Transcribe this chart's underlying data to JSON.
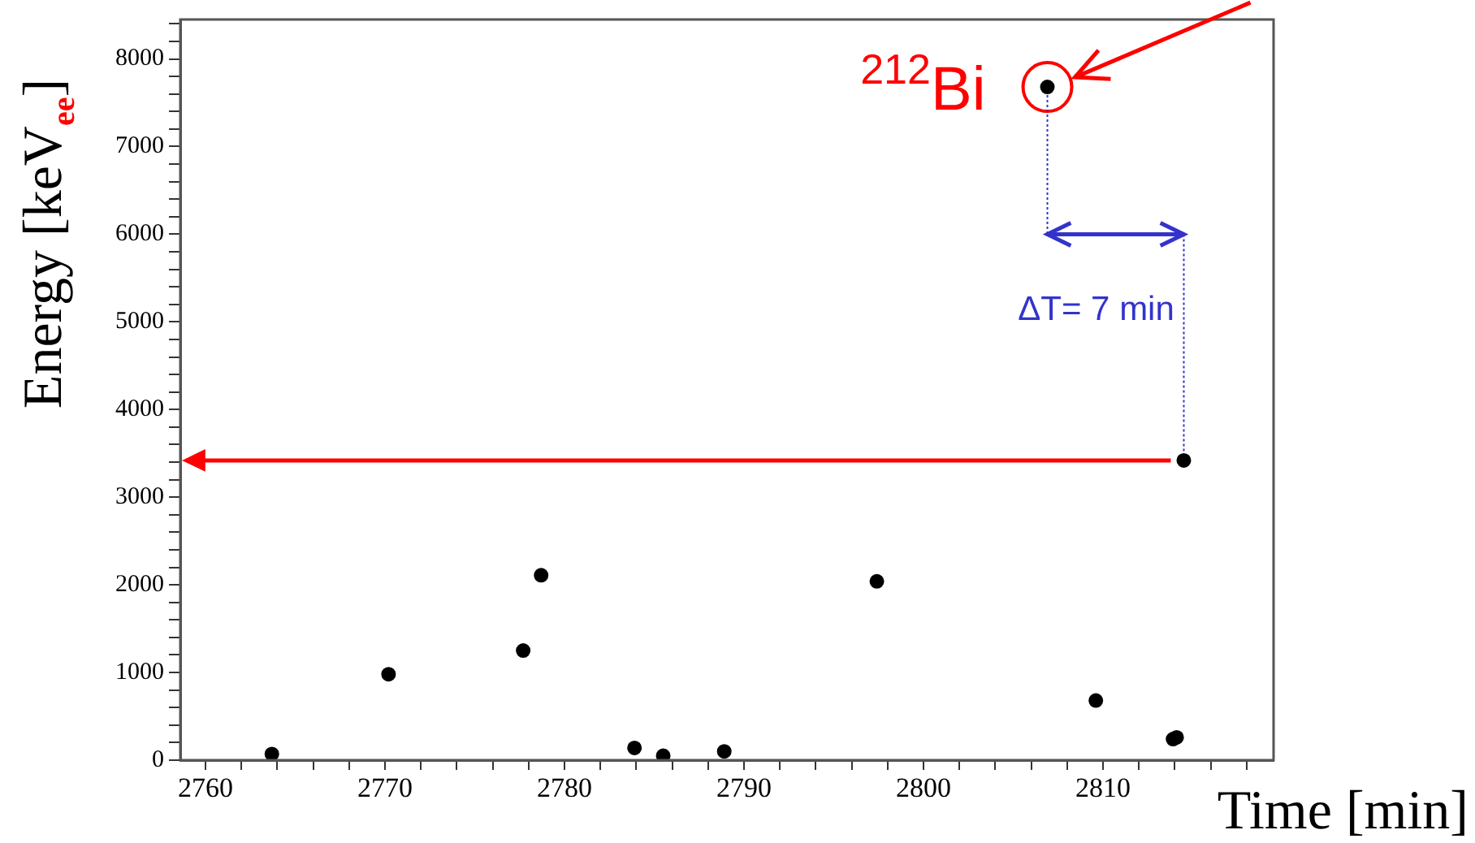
{
  "chart_data": {
    "type": "scatter",
    "xlabel": "Time  [min]",
    "ylabel": "Energy  [keV$_{ee}$]",
    "x": [
      2763.7,
      2770.2,
      2777.7,
      2778.7,
      2783.9,
      2785.5,
      2788.9,
      2797.4,
      2806.9,
      2809.6,
      2813.9,
      2814.1,
      2814.5
    ],
    "series": [
      {
        "color": "#000000",
        "values": [
          70,
          980,
          1250,
          2110,
          140,
          50,
          100,
          2040,
          7680,
          680,
          240,
          260,
          3420
        ]
      }
    ],
    "xlim": [
      2758.6,
      2819.5
    ],
    "xticks": [
      2760,
      {
        "value": 2762,
        "label": null
      },
      {
        "value": 2764,
        "label": null
      },
      {
        "value": 2766,
        "label": null
      },
      {
        "value": 2768,
        "label": null
      },
      2770,
      {
        "value": 2772,
        "label": null
      },
      {
        "value": 2774,
        "label": null
      },
      {
        "value": 2776,
        "label": null
      },
      {
        "value": 2778,
        "label": null
      },
      2780,
      {
        "value": 2782,
        "label": null
      },
      {
        "value": 2784,
        "label": null
      },
      {
        "value": 2786,
        "label": null
      },
      {
        "value": 2788,
        "label": null
      },
      2790,
      {
        "value": 2792,
        "label": null
      },
      {
        "value": 2794,
        "label": null
      },
      {
        "value": 2796,
        "label": null
      },
      {
        "value": 2798,
        "label": null
      },
      2800,
      {
        "value": 2802,
        "label": null
      },
      {
        "value": 2804,
        "label": null
      },
      {
        "value": 2806,
        "label": null
      },
      {
        "value": 2808,
        "label": null
      },
      2810,
      {
        "value": 2812,
        "label": null
      },
      {
        "value": 2814,
        "label": null
      },
      {
        "value": 2816,
        "label": null
      },
      {
        "value": 2818,
        "label": null
      }
    ],
    "ylim": [
      0,
      8450
    ],
    "yticks": [
      0,
      {
        "value": 200,
        "label": null
      },
      {
        "value": 400,
        "label": null
      },
      {
        "value": 600,
        "label": null
      },
      {
        "value": 800,
        "label": null
      },
      1000,
      {
        "value": 1200,
        "label": null
      },
      {
        "value": 1400,
        "label": null
      },
      {
        "value": 1600,
        "label": null
      },
      {
        "value": 1800,
        "label": null
      },
      2000,
      {
        "value": 2200,
        "label": null
      },
      {
        "value": 2400,
        "label": null
      },
      {
        "value": 2600,
        "label": null
      },
      {
        "value": 2800,
        "label": null
      },
      3000,
      {
        "value": 3200,
        "label": null
      },
      {
        "value": 3400,
        "label": null
      },
      {
        "value": 3600,
        "label": null
      },
      {
        "value": 3800,
        "label": null
      },
      4000,
      {
        "value": 4200,
        "label": null
      },
      {
        "value": 4400,
        "label": null
      },
      {
        "value": 4600,
        "label": null
      },
      {
        "value": 4800,
        "label": null
      },
      5000,
      {
        "value": 5200,
        "label": null
      },
      {
        "value": 5400,
        "label": null
      },
      {
        "value": 5600,
        "label": null
      },
      {
        "value": 5800,
        "label": null
      },
      6000,
      {
        "value": 6200,
        "label": null
      },
      {
        "value": 6400,
        "label": null
      },
      {
        "value": 6600,
        "label": null
      },
      {
        "value": 6800,
        "label": null
      },
      7000,
      {
        "value": 7200,
        "label": null
      },
      {
        "value": 7400,
        "label": null
      },
      {
        "value": 7600,
        "label": null
      },
      {
        "value": 7800,
        "label": null
      },
      8000,
      {
        "value": 8200,
        "label": null
      },
      {
        "value": 8400,
        "label": null
      }
    ],
    "annotations": [
      {
        "text": "$^{212}$Bi",
        "x": 2806.9,
        "y": 7680
      },
      "ΔT= 7 min"
    ],
    "ref_lines": [
      {
        "axis": "y",
        "value": 3420,
        "color": "#ff0000"
      }
    ],
    "grid": false,
    "legend": false,
    "marker": "circle"
  }
}
